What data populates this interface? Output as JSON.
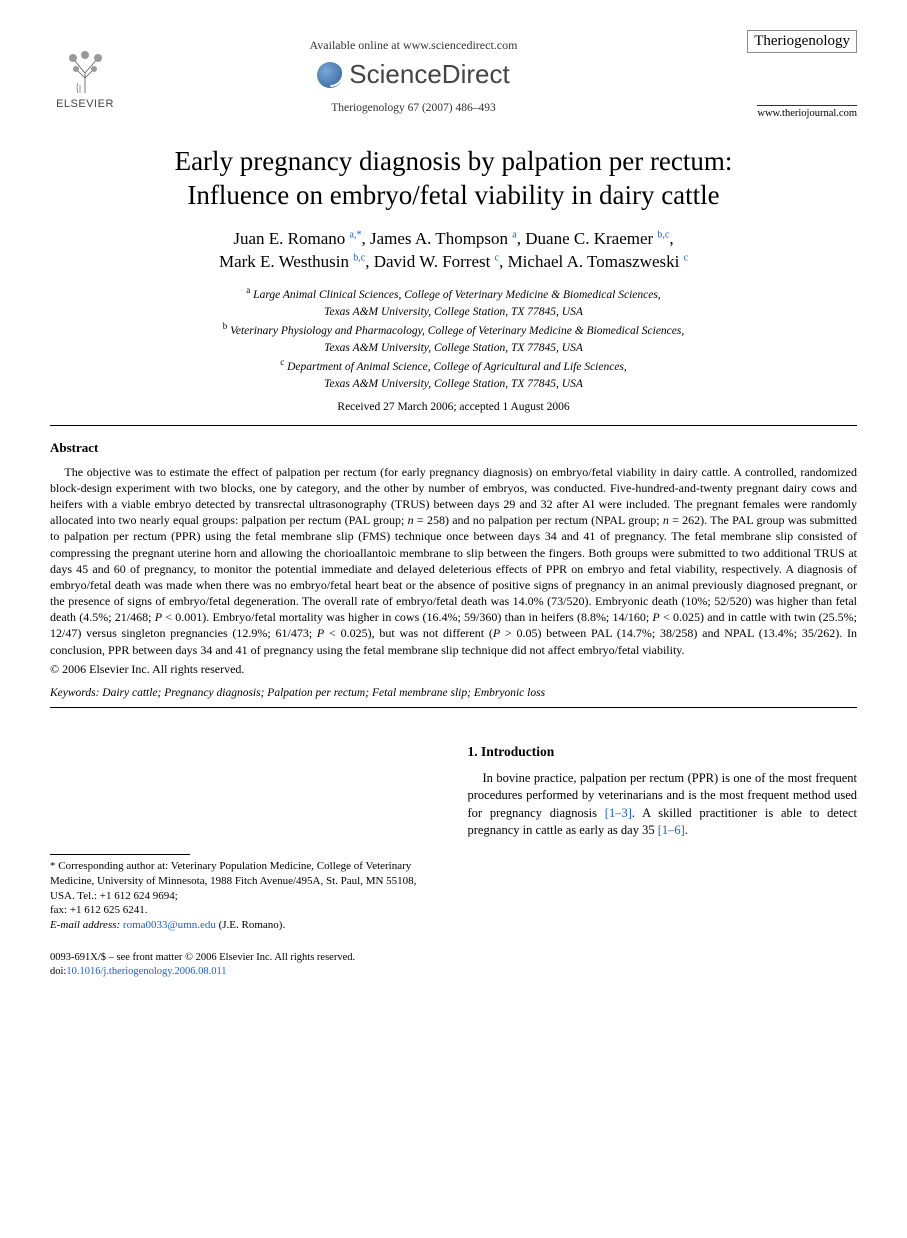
{
  "header": {
    "publisher_logo_text": "ELSEVIER",
    "available_online": "Available online at www.sciencedirect.com",
    "sciencedirect": "ScienceDirect",
    "citation": "Theriogenology 67 (2007) 486–493",
    "journal_name": "Theriogenology",
    "journal_url": "www.theriojournal.com"
  },
  "article": {
    "title_line1": "Early pregnancy diagnosis by palpation per rectum:",
    "title_line2": "Influence on embryo/fetal viability in dairy cattle",
    "authors_line1_html": "Juan E. Romano <sup><a href='#'>a,</a><a href='#'>*</a></sup>, James A. Thompson <sup><a href='#'>a</a></sup>, Duane C. Kraemer <sup><a href='#'>b,c</a></sup>,",
    "authors_line2_html": "Mark E. Westhusin <sup><a href='#'>b,c</a></sup>, David W. Forrest <sup><a href='#'>c</a></sup>, Michael A. Tomaszweski <sup><a href='#'>c</a></sup>",
    "affiliations": [
      "<sup>a</sup> Large Animal Clinical Sciences, College of Veterinary Medicine & Biomedical Sciences,",
      "Texas A&M University, College Station, TX 77845, USA",
      "<sup>b</sup> Veterinary Physiology and Pharmacology, College of Veterinary Medicine & Biomedical Sciences,",
      "Texas A&M University, College Station, TX 77845, USA",
      "<sup>c</sup> Department of Animal Science, College of Agricultural and Life Sciences,",
      "Texas A&M University, College Station, TX 77845, USA"
    ],
    "dates": "Received 27 March 2006; accepted 1 August 2006",
    "abstract_heading": "Abstract",
    "abstract_html": "The objective was to estimate the effect of palpation per rectum (for early pregnancy diagnosis) on embryo/fetal viability in dairy cattle. A controlled, randomized block-design experiment with two blocks, one by category, and the other by number of embryos, was conducted. Five-hundred-and-twenty pregnant dairy cows and heifers with a viable embryo detected by transrectal ultrasonography (TRUS) between days 29 and 32 after AI were included. The pregnant females were randomly allocated into two nearly equal groups: palpation per rectum (PAL group; <i>n</i> = 258) and no palpation per rectum (NPAL group; <i>n</i> = 262). The PAL group was submitted to palpation per rectum (PPR) using the fetal membrane slip (FMS) technique once between days 34 and 41 of pregnancy. The fetal membrane slip consisted of compressing the pregnant uterine horn and allowing the chorioallantoic membrane to slip between the fingers. Both groups were submitted to two additional TRUS at days 45 and 60 of pregnancy, to monitor the potential immediate and delayed deleterious effects of PPR on embryo and fetal viability, respectively. A diagnosis of embryo/fetal death was made when there was no embryo/fetal heart beat or the absence of positive signs of pregnancy in an animal previously diagnosed pregnant, or the presence of signs of embryo/fetal degeneration. The overall rate of embryo/fetal death was 14.0% (73/520). Embryonic death (10%; 52/520) was higher than fetal death (4.5%; 21/468; <i>P</i> < 0.001). Embryo/fetal mortality was higher in cows (16.4%; 59/360) than in heifers (8.8%; 14/160; <i>P</i> < 0.025) and in cattle with twin (25.5%; 12/47) versus singleton pregnancies (12.9%; 61/473; <i>P</i> < 0.025), but was not different (<i>P</i> > 0.05) between PAL (14.7%; 38/258) and NPAL (13.4%; 35/262). In conclusion, PPR between days 34 and 41 of pregnancy using the fetal membrane slip technique did not affect embryo/fetal viability.",
    "copyright": "© 2006 Elsevier Inc. All rights reserved.",
    "keywords_label": "Keywords:",
    "keywords": "Dairy cattle; Pregnancy diagnosis; Palpation per rectum; Fetal membrane slip; Embryonic loss",
    "section1_heading": "1.  Introduction",
    "intro_html": "In bovine practice, palpation per rectum (PPR) is one of the most frequent procedures performed by veterinarians and is the most frequent method used for pregnancy diagnosis <a href='#'>[1–3]</a>. A skilled practitioner is able to detect pregnancy in cattle as early as day 35 <a href='#'>[1–6]</a>."
  },
  "footnote": {
    "corresponding_html": "* Corresponding author at: Veterinary Population Medicine, College of Veterinary Medicine, University of Minnesota, 1988 Fitch Avenue/495A, St. Paul, MN 55108, USA. Tel.: +1 612 624 9694;<br>fax: +1 612 625 6241.",
    "email_label": "E-mail address:",
    "email": "roma0033@umn.edu",
    "email_author": "(J.E. Romano)."
  },
  "footer": {
    "issn_line": "0093-691X/$ – see front matter © 2006 Elsevier Inc. All rights reserved.",
    "doi_label": "doi:",
    "doi": "10.1016/j.theriogenology.2006.08.011"
  },
  "colors": {
    "link": "#2060c0",
    "text": "#000000",
    "muted": "#444444"
  }
}
